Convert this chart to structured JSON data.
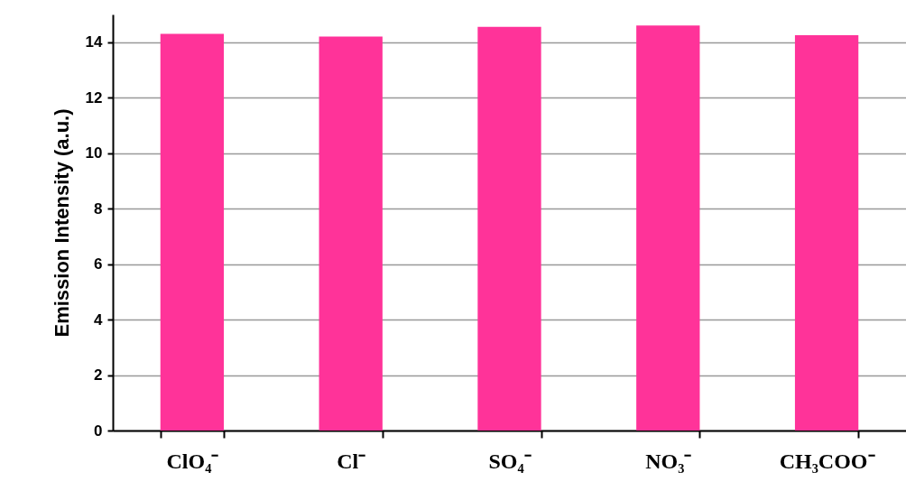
{
  "chart_data": {
    "type": "bar",
    "ylabel": "Emission Intensity (a.u.)",
    "categories": [
      "ClO₄⁻",
      "Cl⁻",
      "SO₄⁻",
      "NO₃⁻",
      "CH₃COO⁻"
    ],
    "values": [
      14.3,
      14.2,
      14.55,
      14.6,
      14.25
    ],
    "color": "#ff3399",
    "ylim": [
      0,
      15
    ],
    "yticks": [
      0,
      2,
      4,
      6,
      8,
      10,
      12,
      14
    ],
    "grid": "y"
  }
}
